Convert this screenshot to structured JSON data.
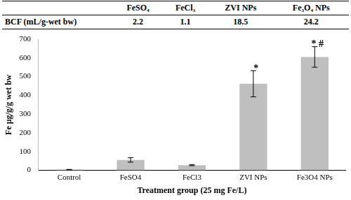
{
  "table": {
    "columns": [
      "FeSO₄",
      "FeCl₃",
      "ZVI NPs",
      "Fe₃O₄ NPs"
    ],
    "rows": [
      {
        "label": "BCF (mL/g-wet bw)",
        "values": [
          2.2,
          1.1,
          18.5,
          24.2
        ]
      }
    ]
  },
  "chart_data": {
    "type": "bar",
    "x_label": "Treatment group (25 mg Fe/L)",
    "y_label": "Fe μg/g/g wet bw",
    "categories": [
      "Control",
      "FeSO4",
      "FeCl3",
      "ZVI NPs",
      "Fe3O4 NPs"
    ],
    "values": [
      3,
      55,
      27,
      462,
      605
    ],
    "errors": [
      1,
      12,
      3,
      70,
      55
    ],
    "annotations": [
      {
        "category": "ZVI NPs",
        "text": "*"
      },
      {
        "category": "Fe3O4 NPs",
        "text": "* #"
      }
    ],
    "color": "#bfbfbf",
    "ylim": [
      0,
      700
    ],
    "yticks": [
      0,
      100,
      200,
      300,
      400,
      500,
      600,
      700
    ],
    "grid": false
  }
}
